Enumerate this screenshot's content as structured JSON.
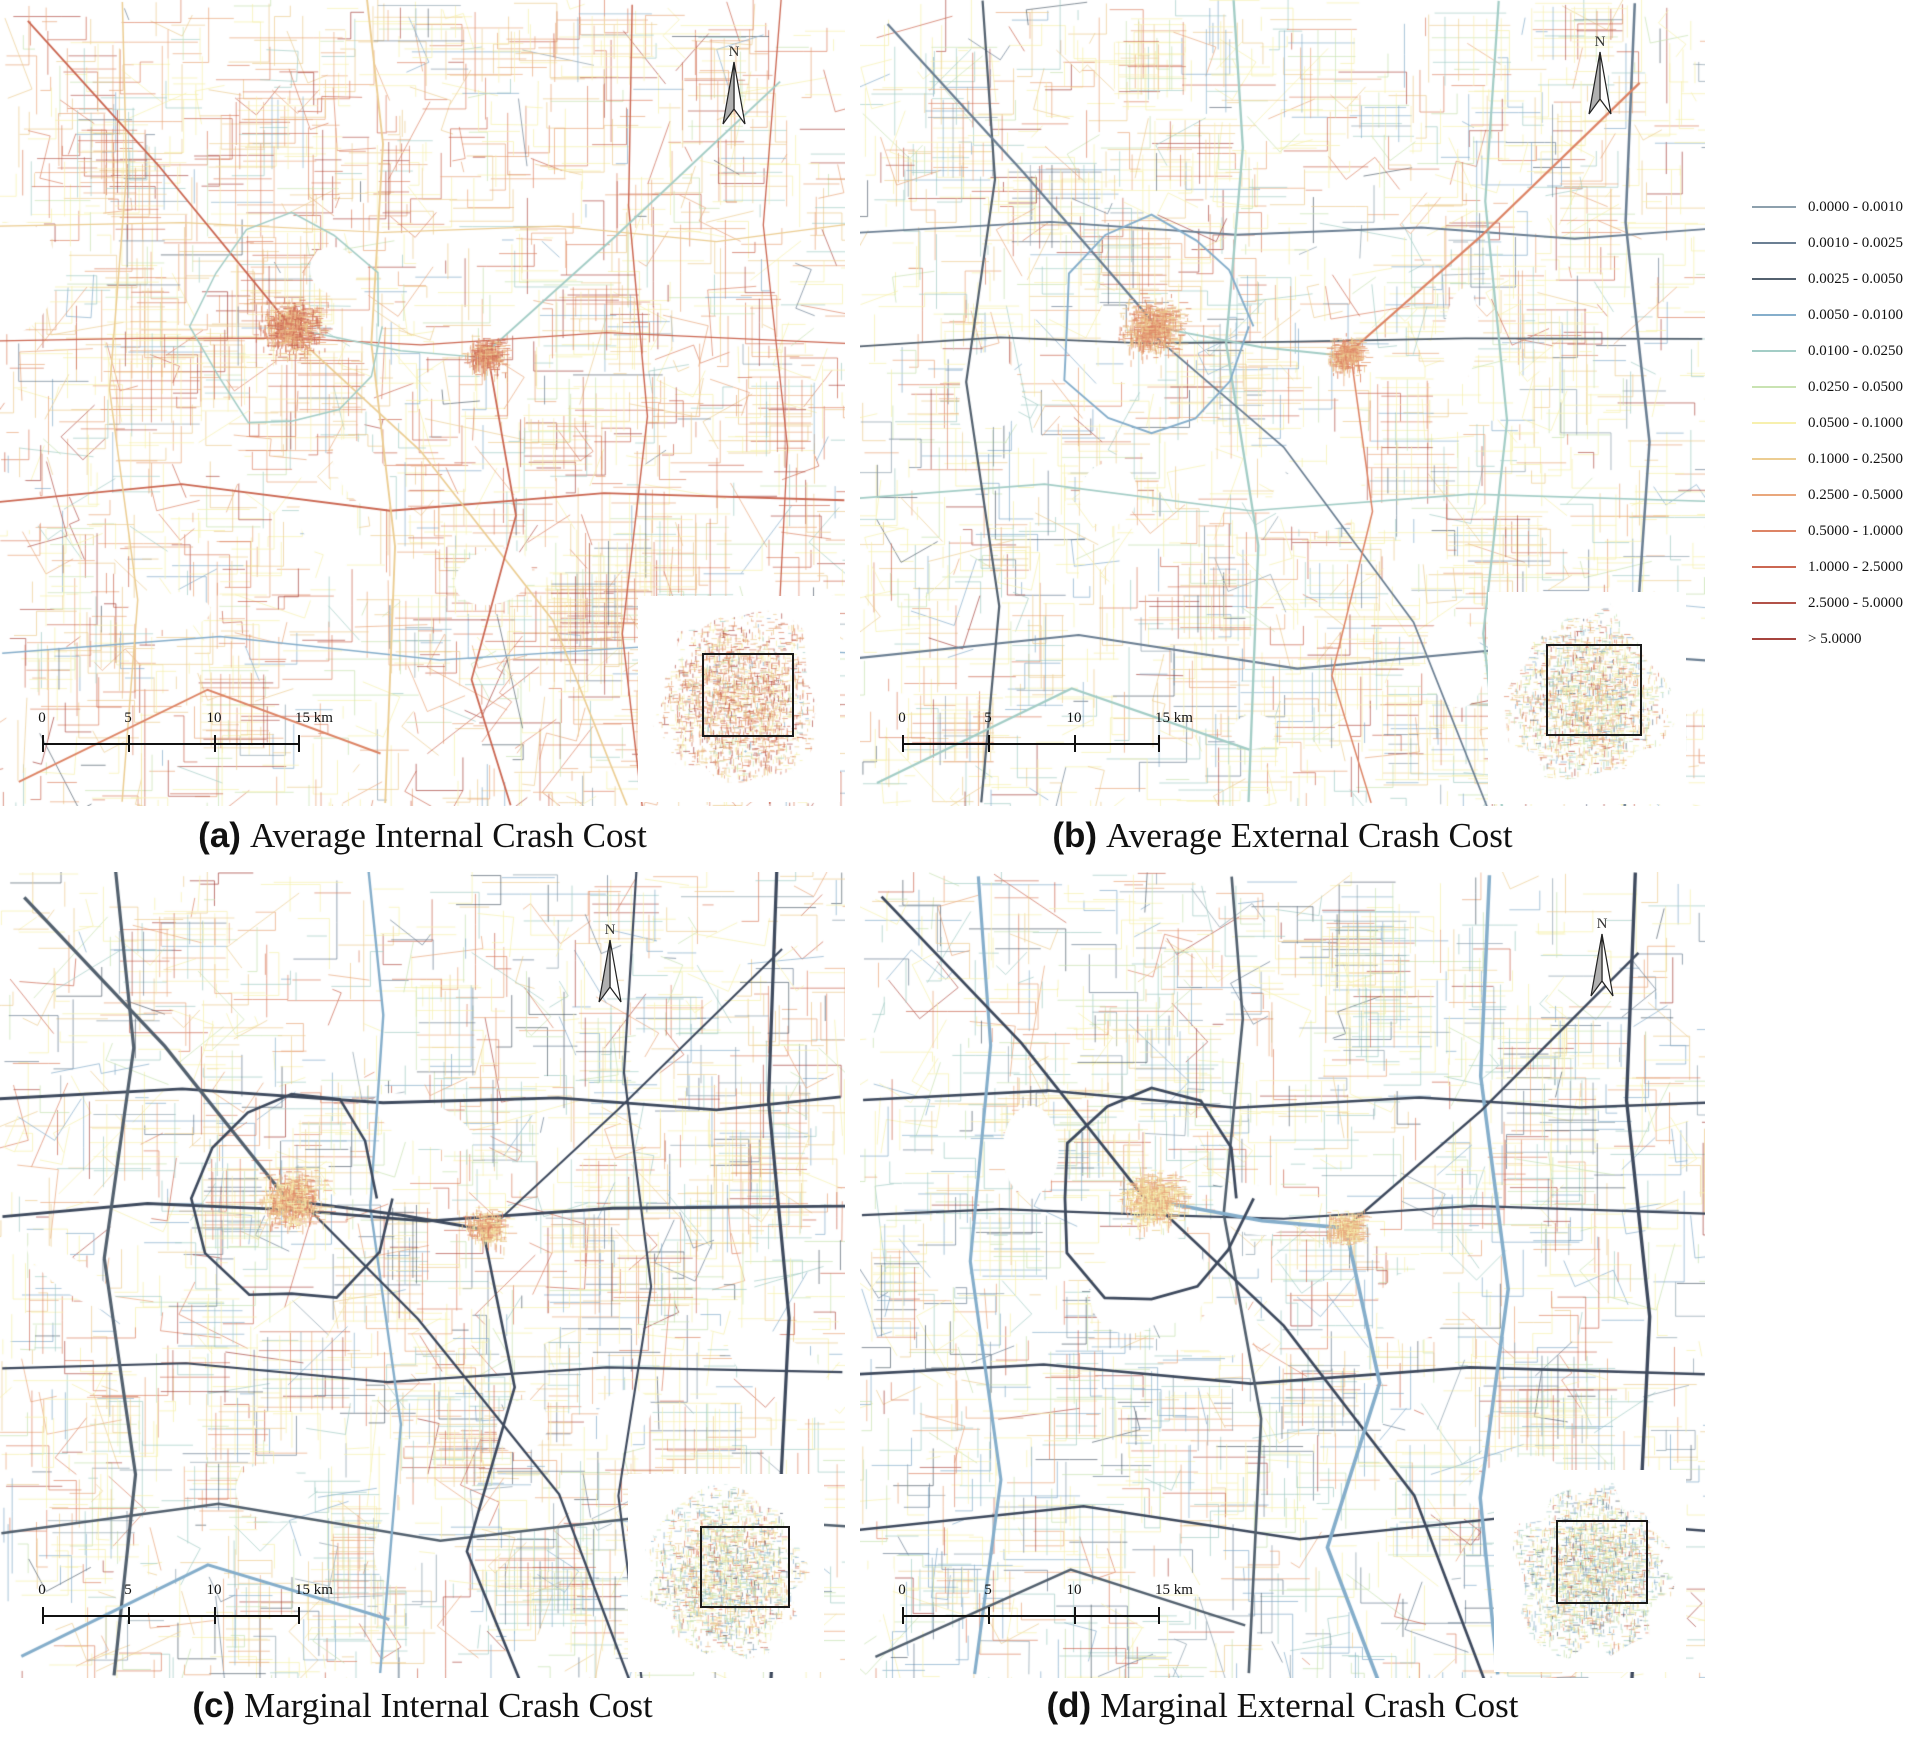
{
  "figure": {
    "background": "#ffffff",
    "north_label": "N",
    "scalebar": {
      "labels": [
        "0",
        "5",
        "10",
        "15 km"
      ]
    },
    "panels": [
      {
        "id": "a",
        "marker": "(a)",
        "caption": "Average Internal Crash Cost",
        "render_style": {
          "seed": 101,
          "density": 1.0,
          "hw_width": 1.5,
          "weights": [
            1,
            1,
            1,
            3,
            5,
            4,
            22,
            17,
            13,
            10,
            6,
            4,
            2
          ],
          "highway_colors": [
            "#a3cdc6",
            "#dd8465",
            "#cb6752",
            "#85aecb",
            "#eccd92"
          ],
          "core_colors": [
            "#e9a77c",
            "#dd8465",
            "#cb6752",
            "#eccd92"
          ],
          "inset_weights": [
            0,
            0,
            0,
            1,
            2,
            3,
            14,
            16,
            16,
            12,
            8,
            4,
            2
          ]
        }
      },
      {
        "id": "b",
        "marker": "(b)",
        "caption": "Average External Crash Cost",
        "render_style": {
          "seed": 202,
          "density": 0.95,
          "hw_width": 1.9,
          "weights": [
            2,
            2,
            1,
            6,
            8,
            6,
            30,
            13,
            7,
            5,
            3,
            2,
            1
          ],
          "highway_colors": [
            "#85aecb",
            "#a3cdc6",
            "#6b7f93",
            "#53616f",
            "#dd8465"
          ],
          "core_colors": [
            "#e9a77c",
            "#eccd92",
            "#dd8465"
          ],
          "inset_weights": [
            0,
            1,
            1,
            4,
            8,
            10,
            16,
            12,
            8,
            4,
            2,
            1,
            1
          ]
        }
      },
      {
        "id": "c",
        "marker": "(c)",
        "caption": "Marginal Internal Crash Cost",
        "render_style": {
          "seed": 303,
          "density": 0.9,
          "hw_width": 2.6,
          "weights": [
            3,
            3,
            2,
            7,
            9,
            7,
            26,
            12,
            7,
            5,
            3,
            2,
            1
          ],
          "highway_colors": [
            "#3e4a5e",
            "#3e4a5e",
            "#53616f",
            "#85aecb"
          ],
          "core_colors": [
            "#eccd92",
            "#e9a77c",
            "#f7f0ae",
            "#dd8465"
          ],
          "inset_weights": [
            1,
            1,
            1,
            6,
            9,
            12,
            16,
            10,
            6,
            3,
            2,
            1,
            0
          ]
        }
      },
      {
        "id": "d",
        "marker": "(d)",
        "caption": "Marginal External Crash Cost",
        "render_style": {
          "seed": 404,
          "density": 0.9,
          "hw_width": 2.8,
          "weights": [
            4,
            4,
            3,
            10,
            12,
            8,
            26,
            9,
            5,
            3,
            2,
            1,
            1
          ],
          "highway_colors": [
            "#3e4a5e",
            "#3e4a5e",
            "#53616f",
            "#85aecb"
          ],
          "core_colors": [
            "#eccd92",
            "#e9a77c",
            "#f7f0ae"
          ],
          "inset_weights": [
            1,
            2,
            2,
            8,
            10,
            12,
            14,
            8,
            5,
            2,
            1,
            1,
            0
          ]
        }
      }
    ],
    "legend": {
      "entries": [
        {
          "label": "0.0000 - 0.0010",
          "color": "#8da0ad"
        },
        {
          "label": "0.0010 - 0.0025",
          "color": "#6b7f93"
        },
        {
          "label": "0.0025 - 0.0050",
          "color": "#53616f"
        },
        {
          "label": "0.0050 - 0.0100",
          "color": "#85aecb"
        },
        {
          "label": "0.0100 - 0.0250",
          "color": "#a3cdc6"
        },
        {
          "label": "0.0250 - 0.0500",
          "color": "#c9e3b2"
        },
        {
          "label": "0.0500 - 0.1000",
          "color": "#f7f0ae"
        },
        {
          "label": "0.1000 - 0.2500",
          "color": "#eccd92"
        },
        {
          "label": "0.2500 - 0.5000",
          "color": "#e9a77c"
        },
        {
          "label": "0.5000 - 1.0000",
          "color": "#dd8465"
        },
        {
          "label": "1.0000 - 2.5000",
          "color": "#cb6752"
        },
        {
          "label": "2.5000 - 5.0000",
          "color": "#b25249"
        },
        {
          "label": "> 5.0000",
          "color": "#a6443e"
        }
      ]
    }
  }
}
